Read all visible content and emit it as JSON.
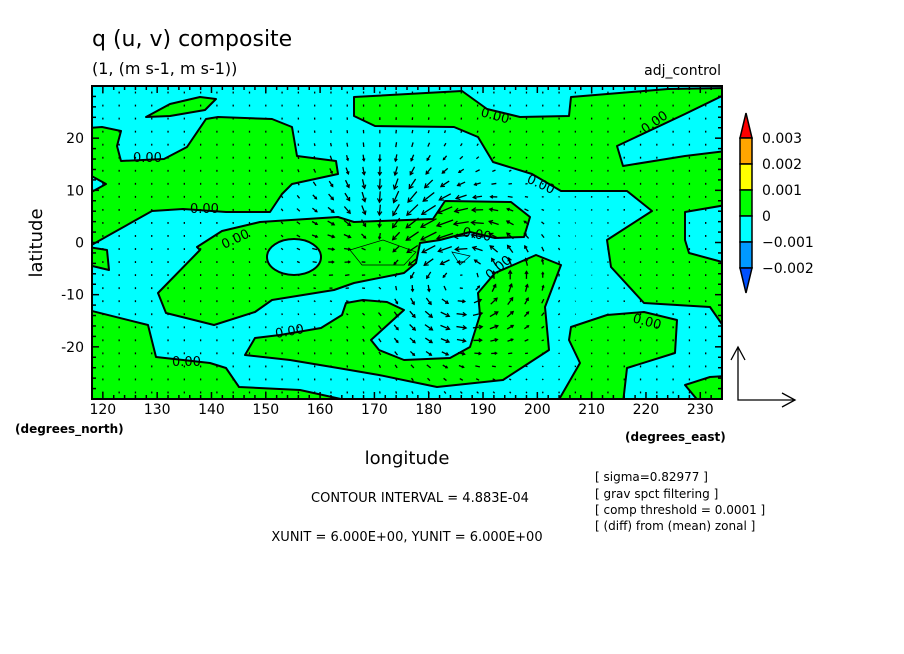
{
  "chart_data": {
    "type": "contour+vector",
    "title": "q (u, v) composite",
    "subtitle": "(1, (m s-1, m s-1))",
    "run_label": "adj_control",
    "xlabel": "longitude",
    "ylabel": "latitude",
    "x_unit_label": "(degrees_east)",
    "y_unit_label": "(degrees_north)",
    "xlim": [
      118,
      234
    ],
    "ylim": [
      -30,
      30
    ],
    "x_ticks": [
      120,
      130,
      140,
      150,
      160,
      170,
      180,
      190,
      200,
      210,
      220,
      230
    ],
    "y_ticks": [
      -20,
      -10,
      0,
      10,
      20
    ],
    "contour_label": "0.00",
    "contour_interval_text": "CONTOUR INTERVAL = 4.883E-04",
    "unit_vector_text": "XUNIT = 6.000E+00, YUNIT = 6.000E+00",
    "notes": [
      "[ sigma=0.82977 ]",
      "[ grav spct filtering ]",
      "[ comp threshold = 0.0001 ]",
      "[ (diff) from (mean) zonal ]"
    ],
    "colorbar": {
      "levels": [
        "0.003",
        "0.002",
        "0.001",
        "0",
        "-0.001",
        "-0.002"
      ],
      "colors": [
        "#ff0000",
        "#ffa500",
        "#ffff00",
        "#00ff00",
        "#00ffff",
        "#0099ff",
        "#0050ff"
      ]
    },
    "fill_colors": {
      "positive": "#00ff00",
      "negative": "#00ffff"
    },
    "vector_field": {
      "lon_step": 3,
      "lat_step": 2.5,
      "background_uv": [
        0.0,
        -0.6
      ],
      "vortex": {
        "lon": 186,
        "lat": -6,
        "strength": 5.5,
        "radius": 9
      },
      "convergence": {
        "lon": 172,
        "lat": 2,
        "strength": 4,
        "radius": 8
      },
      "unit": 6
    }
  }
}
